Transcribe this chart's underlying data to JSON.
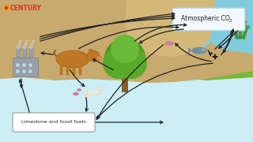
{
  "bg_sky": "#cceef5",
  "bg_green_hill": "#7ab83a",
  "bg_green_hill2": "#6aaa2a",
  "bg_sand": "#c8a96e",
  "bg_sand2": "#d4b87a",
  "bg_water": "#80ccdd",
  "bg_water_dark": "#60b8cc",
  "factory_gray": "#9aa0a8",
  "factory_dark": "#7a8088",
  "factory_window": "#b8d8e8",
  "tree_trunk": "#8b5e2a",
  "tree_green1": "#5aaa2a",
  "tree_green2": "#4a9a1a",
  "tree_green3": "#6aba3a",
  "cow_body": "#c07828",
  "cow_dark": "#a06018",
  "arrow_color": "#222222",
  "atm_box_bg": "#f0f8fc",
  "atm_box_edge": "#aaccdd",
  "lim_box_bg": "#ffffff",
  "lim_box_edge": "#999999",
  "century_red": "#dd3322",
  "century_icon": "#e8a020",
  "smoke_color": "#888888",
  "title_text": "CENTURY",
  "atm_label": "Atmospheric CO",
  "atm_label2": "2",
  "lim_label": "Limestone and fossil fuels",
  "seaweed_green": "#4a9040",
  "fish_color": "#7090a0",
  "bone_color": "#f0ead8",
  "marine_node_color": "#222222",
  "pink_organism": "#d080a0"
}
